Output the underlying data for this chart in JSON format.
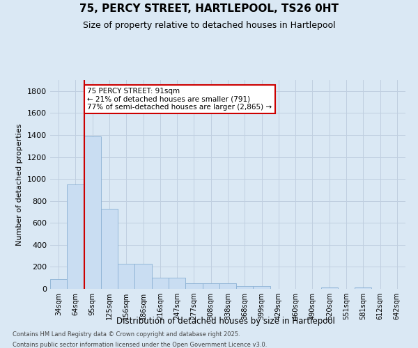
{
  "title1": "75, PERCY STREET, HARTLEPOOL, TS26 0HT",
  "title2": "Size of property relative to detached houses in Hartlepool",
  "xlabel": "Distribution of detached houses by size in Hartlepool",
  "ylabel": "Number of detached properties",
  "bar_color": "#c9ddf2",
  "bar_edge_color": "#8ab0d4",
  "grid_color": "#c0cfe0",
  "background_color": "#dae8f4",
  "annotation_text": "75 PERCY STREET: 91sqm\n← 21% of detached houses are smaller (791)\n77% of semi-detached houses are larger (2,865) →",
  "annotation_box_color": "#ffffff",
  "annotation_box_edge": "#cc0000",
  "vline_color": "#cc0000",
  "footnote1": "Contains HM Land Registry data © Crown copyright and database right 2025.",
  "footnote2": "Contains public sector information licensed under the Open Government Licence v3.0.",
  "categories": [
    "34sqm",
    "64sqm",
    "95sqm",
    "125sqm",
    "156sqm",
    "186sqm",
    "216sqm",
    "247sqm",
    "277sqm",
    "308sqm",
    "338sqm",
    "368sqm",
    "399sqm",
    "429sqm",
    "460sqm",
    "490sqm",
    "520sqm",
    "551sqm",
    "581sqm",
    "612sqm",
    "642sqm"
  ],
  "values": [
    90,
    950,
    1390,
    730,
    230,
    230,
    100,
    100,
    50,
    50,
    50,
    25,
    25,
    0,
    0,
    0,
    10,
    0,
    10,
    0,
    0
  ],
  "ylim": [
    0,
    1900
  ],
  "yticks": [
    0,
    200,
    400,
    600,
    800,
    1000,
    1200,
    1400,
    1600,
    1800
  ],
  "vline_bar_index": 2
}
